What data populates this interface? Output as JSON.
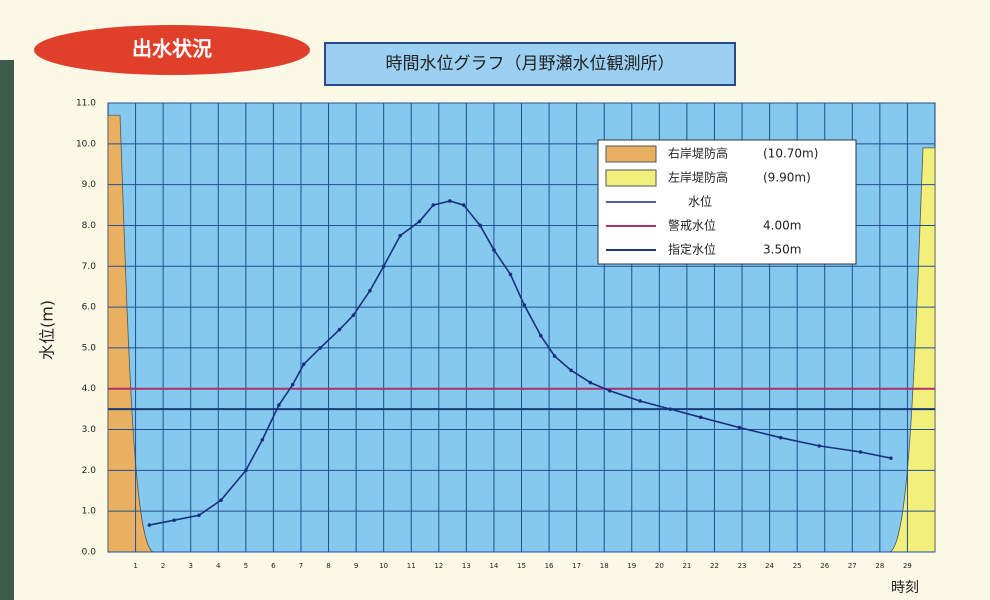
{
  "badge": "出水状況",
  "chart_data": {
    "type": "line",
    "title": "時間水位グラフ（月野瀬水位観測所）",
    "y_label": "水位(m)",
    "x_label": "時刻",
    "xlim": [
      0,
      30
    ],
    "xticks": [
      1,
      2,
      3,
      4,
      5,
      6,
      7,
      8,
      9,
      10,
      11,
      12,
      13,
      14,
      15,
      16,
      17,
      18,
      19,
      20,
      21,
      22,
      23,
      24,
      25,
      26,
      27,
      28,
      29
    ],
    "ylim": [
      0,
      11
    ],
    "yticks": [
      {
        "value": 0,
        "label": "0.0"
      },
      {
        "value": 1,
        "label": "1.0"
      },
      {
        "value": 2,
        "label": "2.0"
      },
      {
        "value": 3,
        "label": "3.0"
      },
      {
        "value": 4,
        "label": "4.0"
      },
      {
        "value": 5,
        "label": "5.0"
      },
      {
        "value": 6,
        "label": "6.0"
      },
      {
        "value": 7,
        "label": "7.0"
      },
      {
        "value": 8,
        "label": "8.0"
      },
      {
        "value": 9,
        "label": "9.0"
      },
      {
        "value": 10,
        "label": "10.0"
      },
      {
        "value": 11,
        "label": "11.0"
      }
    ],
    "grid": true,
    "banks": [
      {
        "name": "右岸堤防高",
        "label": "(10.70m)",
        "value": 10.7,
        "color": "#e8b060",
        "side": "left"
      },
      {
        "name": "左岸堤防高",
        "label": "(9.90m)",
        "value": 9.9,
        "color": "#f2f07a",
        "side": "right"
      }
    ],
    "series": [
      {
        "name": "水位",
        "color": "#1a2f80",
        "x": [
          1.5,
          2.4,
          3.3,
          4.1,
          5.0,
          5.6,
          6.2,
          6.7,
          7.1,
          7.7,
          8.4,
          8.9,
          9.5,
          10.0,
          10.6,
          11.3,
          11.8,
          12.4,
          12.9,
          13.5,
          14.0,
          14.6,
          15.1,
          15.7,
          16.2,
          16.8,
          17.5,
          18.2,
          19.3,
          20.4,
          21.5,
          22.9,
          24.4,
          25.8,
          27.3,
          28.4
        ],
        "values": [
          0.66,
          0.78,
          0.9,
          1.27,
          2.0,
          2.75,
          3.6,
          4.1,
          4.6,
          5.0,
          5.45,
          5.8,
          6.4,
          7.0,
          7.75,
          8.1,
          8.5,
          8.6,
          8.5,
          8.0,
          7.4,
          6.8,
          6.05,
          5.3,
          4.8,
          4.45,
          4.15,
          3.95,
          3.7,
          3.5,
          3.3,
          3.05,
          2.8,
          2.6,
          2.45,
          2.3
        ]
      }
    ],
    "hlines": [
      {
        "name": "警戒水位",
        "label": "4.00m",
        "value": 4.0,
        "color": "#b0306a"
      },
      {
        "name": "指定水位",
        "label": "3.50m",
        "value": 3.5,
        "color": "#1a3a78"
      }
    ],
    "legend": "upper right"
  }
}
